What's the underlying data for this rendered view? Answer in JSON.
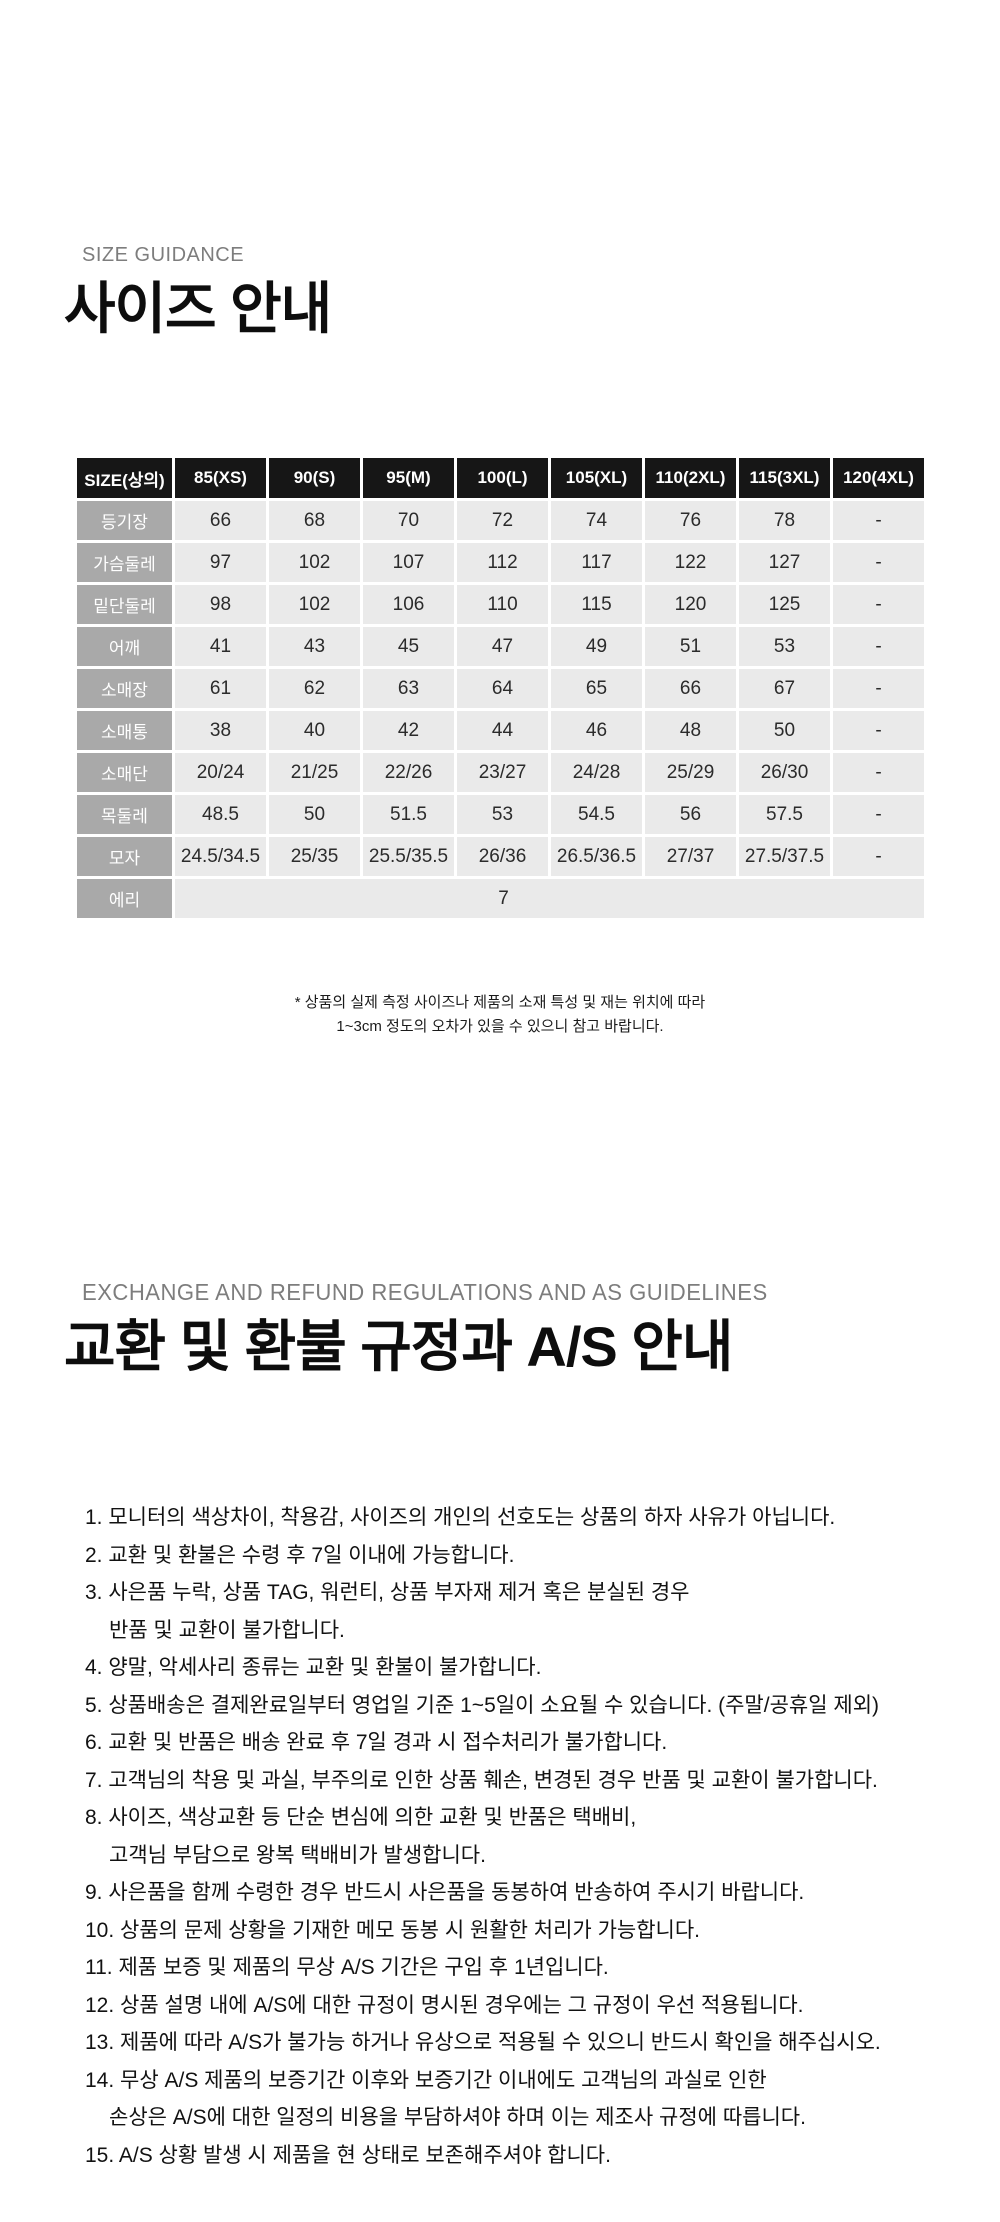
{
  "colors": {
    "eyebrow": "#7d7d7d",
    "title": "#0d0d0d",
    "header-bg": "#161616",
    "label-bg": "#a9a9a9",
    "cell-bg": "#eaeaea"
  },
  "size_section": {
    "eyebrow": "SIZE GUIDANCE",
    "title": "사이즈 안내",
    "table": {
      "columns": [
        "SIZE(상의)",
        "85(XS)",
        "90(S)",
        "95(M)",
        "100(L)",
        "105(XL)",
        "110(2XL)",
        "115(3XL)",
        "120(4XL)"
      ],
      "rows": [
        {
          "label": "등기장",
          "values": [
            "66",
            "68",
            "70",
            "72",
            "74",
            "76",
            "78",
            "-"
          ]
        },
        {
          "label": "가슴둘레",
          "values": [
            "97",
            "102",
            "107",
            "112",
            "117",
            "122",
            "127",
            "-"
          ]
        },
        {
          "label": "밑단둘레",
          "values": [
            "98",
            "102",
            "106",
            "110",
            "115",
            "120",
            "125",
            "-"
          ]
        },
        {
          "label": "어깨",
          "values": [
            "41",
            "43",
            "45",
            "47",
            "49",
            "51",
            "53",
            "-"
          ]
        },
        {
          "label": "소매장",
          "values": [
            "61",
            "62",
            "63",
            "64",
            "65",
            "66",
            "67",
            "-"
          ]
        },
        {
          "label": "소매통",
          "values": [
            "38",
            "40",
            "42",
            "44",
            "46",
            "48",
            "50",
            "-"
          ]
        },
        {
          "label": "소매단",
          "values": [
            "20/24",
            "21/25",
            "22/26",
            "23/27",
            "24/28",
            "25/29",
            "26/30",
            "-"
          ]
        },
        {
          "label": "목둘레",
          "values": [
            "48.5",
            "50",
            "51.5",
            "53",
            "54.5",
            "56",
            "57.5",
            "-"
          ]
        },
        {
          "label": "모자",
          "values": [
            "24.5/34.5",
            "25/35",
            "25.5/35.5",
            "26/36",
            "26.5/36.5",
            "27/37",
            "27.5/37.5",
            "-"
          ]
        },
        {
          "label": "에리",
          "merged_value": "7"
        }
      ]
    },
    "note_lines": [
      "* 상품의 실제 측정 사이즈나 제품의 소재 특성 및 재는 위치에 따라",
      "1~3cm 정도의 오차가 있을 수 있으니 참고 바랍니다."
    ]
  },
  "policy_section": {
    "eyebrow": "EXCHANGE AND REFUND REGULATIONS AND AS GUIDELINES",
    "title": "교환 및 환불 규정과 A/S 안내",
    "items": [
      "1. 모니터의 색상차이, 착용감, 사이즈의 개인의 선호도는 상품의 하자 사유가 아닙니다.",
      "2. 교환 및 환불은 수령 후 7일 이내에 가능합니다.",
      "3. 사은품 누락, 상품 TAG,  워런티, 상품 부자재 제거 혹은 분실된 경우\n반품 및 교환이 불가합니다.",
      "4. 양말, 악세사리 종류는 교환 및 환불이 불가합니다.",
      "5. 상품배송은 결제완료일부터 영업일 기준 1~5일이 소요될  수 있습니다. (주말/공휴일 제외)",
      "6. 교환 및 반품은 배송 완료 후 7일 경과 시 접수처리가 불가합니다.",
      "7. 고객님의 착용 및 과실, 부주의로 인한 상품 훼손, 변경된 경우 반품 및 교환이 불가합니다.",
      "8. 사이즈, 색상교환 등 단순 변심에 의한 교환 및 반품은 택배비,\n고객님 부담으로 왕복 택배비가 발생합니다.",
      "9. 사은품을 함께 수령한 경우 반드시 사은품을 동봉하여 반송하여 주시기 바랍니다.",
      "10. 상품의 문제 상황을 기재한 메모 동봉 시 원활한 처리가 가능합니다.",
      "11. 제품 보증 및 제품의 무상 A/S 기간은 구입 후 1년입니다.",
      "12. 상품 설명 내에 A/S에 대한 규정이 명시된 경우에는 그 규정이 우선 적용됩니다.",
      "13. 제품에 따라 A/S가 불가능 하거나 유상으로 적용될 수 있으니 반드시 확인을 해주십시오.",
      "14. 무상 A/S 제품의 보증기간 이후와 보증기간 이내에도 고객님의 과실로 인한\n손상은  A/S에 대한 일정의 비용을 부담하셔야 하며 이는 제조사 규정에 따릅니다.",
      "15. A/S 상황 발생 시 제품을 현 상태로 보존해주셔야 합니다."
    ]
  }
}
